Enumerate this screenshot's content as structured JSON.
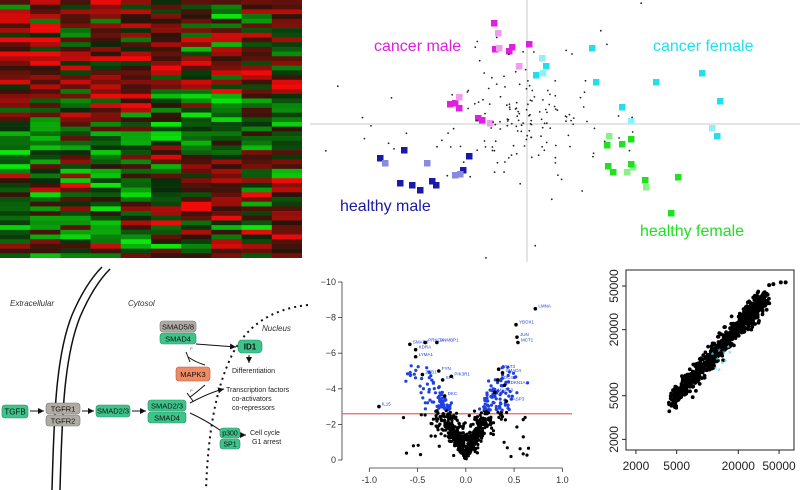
{
  "colors": {
    "heat_red": "#e01414",
    "heat_green": "#14d214",
    "cancer_male": "#e020e0",
    "cancer_female": "#20e0f0",
    "healthy_male": "#1a1aa8",
    "healthy_female": "#20e020",
    "pathway_green": "#3cc48a",
    "pathway_gray": "#b0aca4",
    "pathway_orange": "#ee8a64",
    "volcano_blue": "#2040e0",
    "threshold_red": "#f06060",
    "scatter_cyan": "#40e0f0"
  },
  "heatmap": {
    "rows": 55,
    "cols": 10
  },
  "pca": {
    "labels": {
      "cancer_male": "cancer male",
      "cancer_female": "cancer female",
      "healthy_male": "healthy male",
      "healthy_female": "healthy female"
    }
  },
  "pathway": {
    "regions": {
      "extracellular": "Extracellular",
      "cytosol": "Cytosol",
      "nucleus": "Nucleus"
    },
    "nodes": {
      "tgfb": "TGFB",
      "tgfr1": "TGFR1",
      "tgfr2": "TGFR2",
      "smad23_a": "SMAD2/3",
      "smad23_b": "SMAD2/3",
      "smad4_a": "SMAD4",
      "smad58": "SMAD5/8",
      "smad4_b": "SMAD4",
      "mapk3": "MAPK3",
      "id1": "ID1",
      "p300": "p300",
      "sp1": "SP1"
    },
    "annotations": {
      "diff": "Differentiation",
      "tf1": "Transcription factors",
      "tf2": "co-activators",
      "tf3": "co-repressors",
      "cc1": "Cell cycle",
      "cc2": "G1 arrest"
    }
  },
  "chart_data": [
    {
      "type": "scatter",
      "name_hint": "volcano",
      "xlim": [
        -1.2,
        1.1
      ],
      "ylim": [
        0,
        -10
      ],
      "xticks": [
        -1.0,
        -0.5,
        0.0,
        0.5,
        1.0
      ],
      "xtick_labels": [
        "-1.0",
        "-0.5",
        "0.0",
        "0.5",
        "1.0"
      ],
      "yticks": [
        0,
        -2,
        -4,
        -6,
        -8,
        -10
      ],
      "ytick_labels": [
        "0",
        "−2",
        "−4",
        "−6",
        "−8",
        "−10"
      ],
      "threshold_y": -2.6,
      "labeled_points": [
        {
          "x": 0.72,
          "y": -8.5,
          "label": "LMNA"
        },
        {
          "x": 0.52,
          "y": -7.6,
          "label": "YBOX1"
        },
        {
          "x": 0.53,
          "y": -6.9,
          "label": "JUN"
        },
        {
          "x": 0.54,
          "y": -6.6,
          "label": "MCT1"
        },
        {
          "x": -0.58,
          "y": -6.5,
          "label": "SMAD3"
        },
        {
          "x": -0.42,
          "y": -6.6,
          "label": "PRKCA"
        },
        {
          "x": -0.3,
          "y": -6.6,
          "label": "DNMBP1"
        },
        {
          "x": -0.52,
          "y": -6.2,
          "label": "KDRA"
        },
        {
          "x": -0.52,
          "y": -5.8,
          "label": "LYMA1"
        },
        {
          "x": -0.45,
          "y": -4.8,
          "label": "ZEB1"
        },
        {
          "x": -0.28,
          "y": -5.0,
          "label": "FYN"
        },
        {
          "x": -0.24,
          "y": -4.5,
          "label": "SP1"
        },
        {
          "x": -0.15,
          "y": -4.7,
          "label": "PIK3R1"
        },
        {
          "x": -0.22,
          "y": -3.6,
          "label": "DKC"
        },
        {
          "x": -0.9,
          "y": -3.0,
          "label": "IL15"
        },
        {
          "x": 0.34,
          "y": -5.1,
          "label": "STAT3"
        },
        {
          "x": 0.38,
          "y": -4.9,
          "label": "SMAD4"
        },
        {
          "x": 0.33,
          "y": -4.5,
          "label": "CDC42"
        },
        {
          "x": 0.4,
          "y": -4.2,
          "label": "CDKN1A"
        },
        {
          "x": 0.3,
          "y": -3.8,
          "label": "MAPK3"
        },
        {
          "x": 0.42,
          "y": -3.3,
          "label": "CASP3"
        }
      ]
    },
    {
      "type": "scatter",
      "name_hint": "log-log",
      "log_scale": true,
      "xlim": [
        1600,
        70000
      ],
      "ylim": [
        1600,
        70000
      ],
      "xticks": [
        2000,
        5000,
        20000,
        50000
      ],
      "xtick_labels": [
        "2000",
        "5000",
        "20000",
        "50000"
      ],
      "yticks": [
        2000,
        5000,
        20000,
        50000
      ],
      "ytick_labels": [
        "2000",
        "5000",
        "20000",
        "50000"
      ],
      "trend": [
        [
          4300,
          4300
        ],
        [
          38000,
          40000
        ]
      ],
      "tail_points": [
        [
          40000,
          51000
        ],
        [
          44000,
          52000
        ],
        [
          52000,
          54000
        ],
        [
          58000,
          54000
        ]
      ],
      "outlier_cluster": [
        [
          11200,
          11600
        ],
        [
          13000,
          12500
        ],
        [
          14500,
          12000
        ],
        [
          16000,
          13500
        ],
        [
          12000,
          8600
        ],
        [
          13000,
          8300
        ],
        [
          14000,
          9600
        ],
        [
          15000,
          10000
        ],
        [
          12500,
          10500
        ],
        [
          16500,
          12000
        ]
      ]
    }
  ]
}
